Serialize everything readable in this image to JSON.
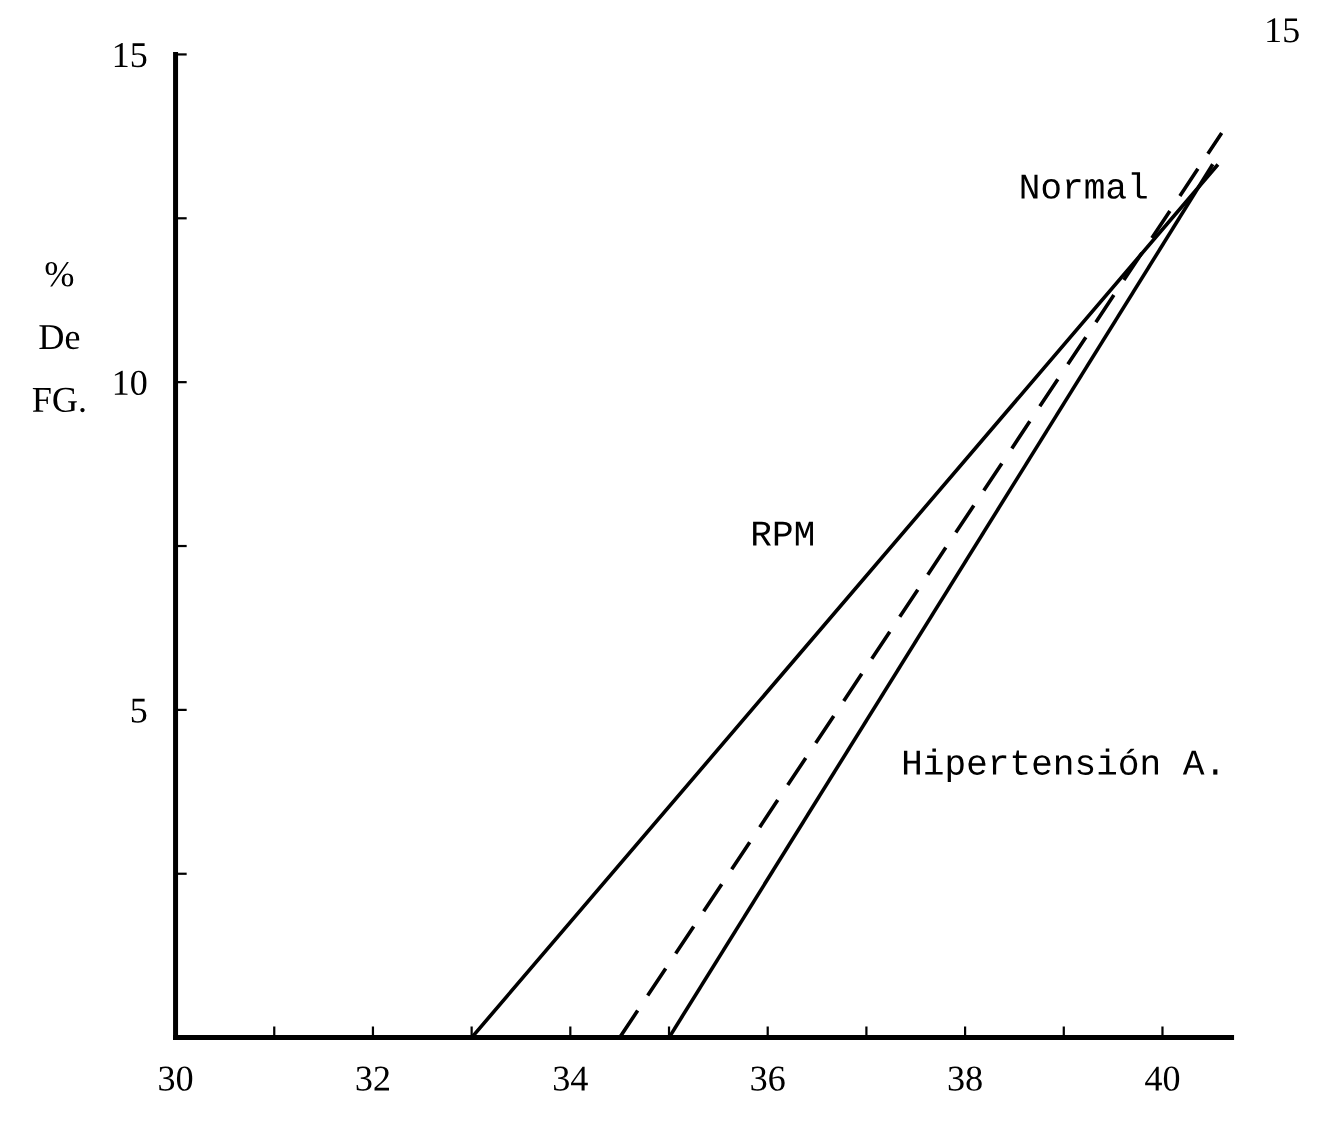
{
  "chart_data": {
    "type": "line",
    "ylabel": "%\nDe\nFG.",
    "series": [
      {
        "color": "#000000",
        "line_style": "solid",
        "x": [
          33.0,
          40.55
        ],
        "values": [
          0,
          13.3
        ]
      },
      {
        "color": "#000000",
        "line_style": "dashed",
        "x": [
          34.5,
          40.6
        ],
        "values": [
          0,
          13.8
        ]
      },
      {
        "color": "#000000",
        "line_style": "solid",
        "x": [
          35.0,
          40.5
        ],
        "values": [
          0,
          13.3
        ]
      }
    ],
    "xlim": [
      30,
      40.7
    ],
    "xticks": [
      30,
      {
        "value": 31,
        "label": null
      },
      32,
      {
        "value": 33,
        "label": null
      },
      34,
      {
        "value": 35,
        "label": null
      },
      36,
      {
        "value": 37,
        "label": null
      },
      38,
      {
        "value": 39,
        "label": null
      },
      40
    ],
    "ylim": [
      0,
      15
    ],
    "yticks": [
      {
        "value": 0,
        "label": null
      },
      {
        "value": 2.5,
        "label": null
      },
      5,
      {
        "value": 7.5,
        "label": null
      },
      10,
      {
        "value": 12.5,
        "label": null
      },
      15
    ],
    "annotations": [
      "Normal",
      "RPM",
      "Hipertensión A.",
      "15"
    ],
    "grid": false,
    "legend": false,
    "marker": "none"
  }
}
